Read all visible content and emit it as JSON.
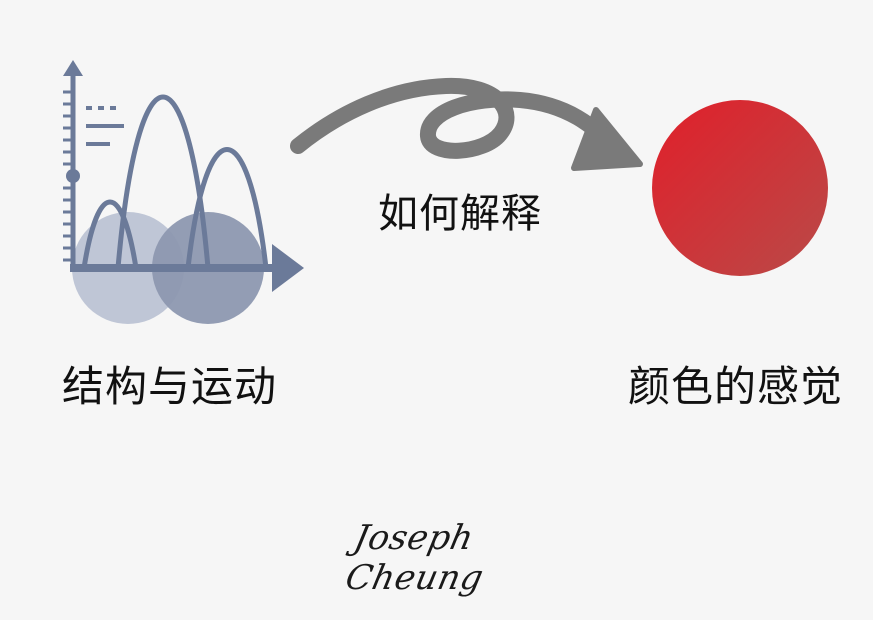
{
  "labels": {
    "left": "结构与运动",
    "middle": "如何解释",
    "right": "颜色的感觉"
  },
  "signature": "Joseph Cheung",
  "icons": {
    "left": "wave-chart-icon",
    "middle": "curved-arrow-icon",
    "right": "red-circle-icon"
  },
  "colors": {
    "background": "#f6f6f6",
    "chart_slate": "#6b7a99",
    "arrow_gray": "#7a7a7a",
    "circle_red_top": "#e11f2a",
    "circle_red_bottom": "#b94a48"
  }
}
